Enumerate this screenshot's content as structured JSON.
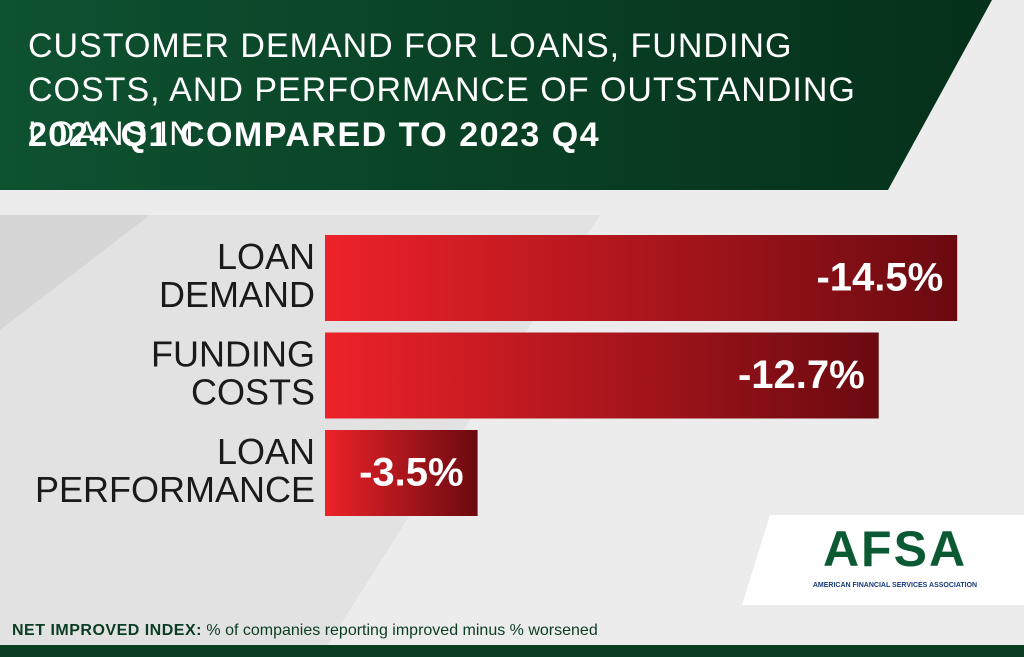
{
  "header": {
    "title": "CUSTOMER DEMAND FOR LOANS, FUNDING COSTS, AND PERFORMANCE OF OUTSTANDING LOANS IN",
    "subtitle": "2024 Q1 COMPARED TO 2023 Q4"
  },
  "chart_data": {
    "type": "bar",
    "orientation": "horizontal",
    "categories": [
      "LOAN DEMAND",
      "FUNDING COSTS",
      "LOAN PERFORMANCE"
    ],
    "values": [
      -14.5,
      -12.7,
      -3.5
    ],
    "value_labels": [
      "-14.5%",
      "-12.7%",
      "-3.5%"
    ],
    "color": "#c8141c"
  },
  "footer": {
    "note_label": "NET IMPROVED INDEX:",
    "note": "% of companies reporting improved minus % worsened"
  },
  "logo": {
    "name": "AFSA",
    "full_name": "AMERICAN FINANCIAL SERVICES ASSOCIATION"
  }
}
